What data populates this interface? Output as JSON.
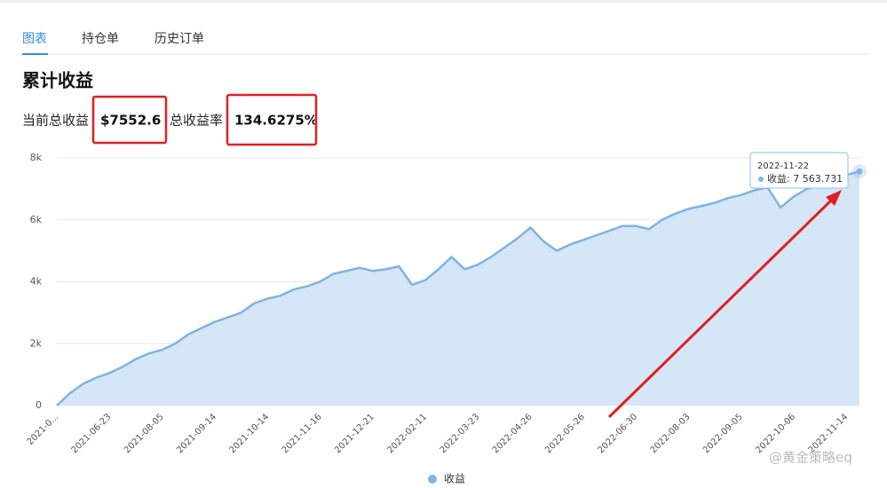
{
  "tabs": [
    "图表",
    "持仓单",
    "历史订单"
  ],
  "heading": "累计收益",
  "stats": {
    "profit_label": "当前总收益",
    "profit_value": "$7552.6",
    "rate_label": "总收益率",
    "rate_value": "134.6275%"
  },
  "watermark": "@黄金策略eq",
  "tooltip": {
    "date": "2022-11-22",
    "text": "收益: 7 563.731"
  },
  "chart_data": {
    "type": "area",
    "categories": [
      "2021-0...",
      null,
      null,
      null,
      "2021-06-23",
      null,
      null,
      null,
      "2021-08-05",
      null,
      null,
      null,
      "2021-09-14",
      null,
      null,
      null,
      "2021-10-14",
      null,
      null,
      null,
      "2021-11-16",
      null,
      null,
      null,
      "2021-12-21",
      null,
      null,
      null,
      "2022-02-11",
      null,
      null,
      null,
      "2022-03-23",
      null,
      null,
      null,
      "2022-04-26",
      null,
      null,
      null,
      "2022-05-26",
      null,
      null,
      null,
      "2022-06-30",
      null,
      null,
      null,
      "2022-08-03",
      null,
      null,
      null,
      "2022-09-05",
      null,
      null,
      null,
      "2022-10-06",
      null,
      null,
      null,
      "2022-11-14",
      null
    ],
    "series": [
      {
        "name": "收益",
        "color": "#7eb3e3",
        "values": [
          0,
          400,
          700,
          900,
          1050,
          1250,
          1500,
          1680,
          1800,
          2000,
          2300,
          2500,
          2700,
          2850,
          3000,
          3300,
          3450,
          3550,
          3750,
          3850,
          4000,
          4250,
          4350,
          4450,
          4350,
          4400,
          4500,
          3900,
          4050,
          4400,
          4800,
          4400,
          4550,
          4800,
          5100,
          5400,
          5750,
          5300,
          5000,
          5200,
          5350,
          5500,
          5650,
          5800,
          5800,
          5700,
          6000,
          6200,
          6350,
          6450,
          6550,
          6700,
          6800,
          6950,
          7050,
          6400,
          6750,
          7000,
          7100,
          7300,
          7450,
          7563.731
        ]
      }
    ],
    "ylim": [
      0,
      8000
    ],
    "yticks": [
      0,
      {
        "value": 2000,
        "label": "2k"
      },
      {
        "value": 4000,
        "label": "4k"
      },
      {
        "value": 6000,
        "label": "6k"
      },
      {
        "value": 8000,
        "label": "8k"
      }
    ],
    "grid": true,
    "legend": "bottom"
  }
}
